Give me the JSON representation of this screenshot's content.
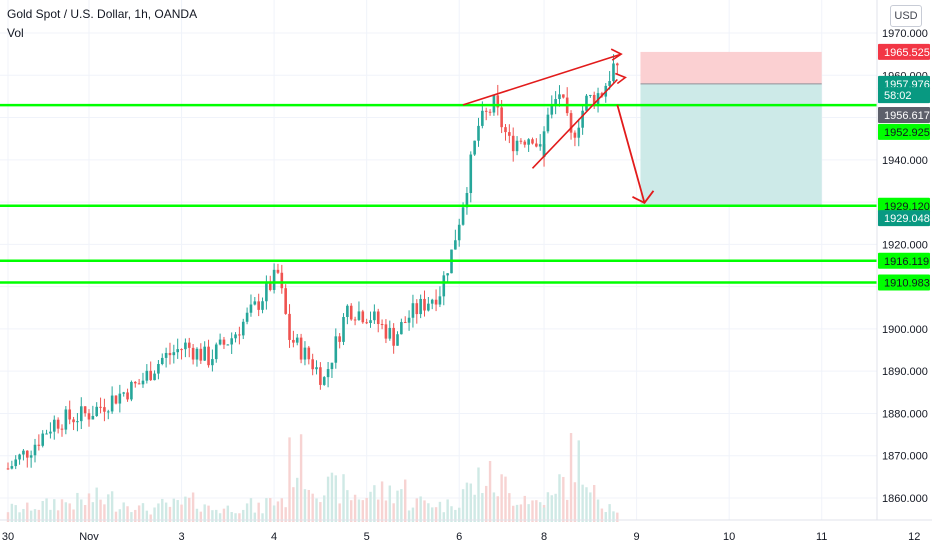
{
  "header": {
    "title": "Gold Spot / U.S. Dollar, 1h, OANDA",
    "volume_label": "Vol",
    "currency_button": "USD"
  },
  "chart_data": {
    "type": "candlestick",
    "symbol": "Gold Spot / U.S. Dollar",
    "interval": "1h",
    "source": "OANDA",
    "ylim": [
      1850,
      1975
    ],
    "y_ticks": [
      "1860.000",
      "1870.000",
      "1880.000",
      "1890.000",
      "1900.000",
      "1910.000",
      "1920.000",
      "1930.000",
      "1940.000",
      "1950.000",
      "1960.000",
      "1970.000"
    ],
    "x_ticks": [
      "30",
      "Nov",
      "3",
      "4",
      "5",
      "6",
      "8",
      "9",
      "10",
      "11",
      "12"
    ],
    "candle_anchors": [
      [
        "2020-10-30 00:00",
        1867
      ],
      [
        "2020-10-30 06:00",
        1872
      ],
      [
        "2020-10-30 12:00",
        1878
      ],
      [
        "2020-11-01 23:00",
        1880
      ],
      [
        "2020-11-02 06:00",
        1884
      ],
      [
        "2020-11-02 12:00",
        1887
      ],
      [
        "2020-11-02 18:00",
        1893
      ],
      [
        "2020-11-03 00:00",
        1896
      ],
      [
        "2020-11-03 06:00",
        1893
      ],
      [
        "2020-11-03 12:00",
        1898
      ],
      [
        "2020-11-03 18:00",
        1905
      ],
      [
        "2020-11-03 21:00",
        1909
      ],
      [
        "2020-11-04 00:00",
        1913
      ],
      [
        "2020-11-04 03:00",
        1898
      ],
      [
        "2020-11-04 08:00",
        1893
      ],
      [
        "2020-11-04 12:00",
        1888
      ],
      [
        "2020-11-04 18:00",
        1905
      ],
      [
        "2020-11-05 00:00",
        1903
      ],
      [
        "2020-11-05 06:00",
        1898
      ],
      [
        "2020-11-05 10:00",
        1903
      ],
      [
        "2020-11-05 18:00",
        1909
      ],
      [
        "2020-11-05 21:00",
        1918
      ],
      [
        "2020-11-06 00:00",
        1930
      ],
      [
        "2020-11-06 04:00",
        1948
      ],
      [
        "2020-11-06 08:00",
        1953
      ],
      [
        "2020-11-06 12:00",
        1944
      ],
      [
        "2020-11-06 18:00",
        1946
      ],
      [
        "2020-11-06 21:00",
        1940
      ],
      [
        "2020-11-08 23:00",
        1948
      ],
      [
        "2020-11-09 03:00",
        1956
      ],
      [
        "2020-11-09 06:00",
        1945
      ],
      [
        "2020-11-09 10:00",
        1954
      ],
      [
        "2020-11-09 14:00",
        1956
      ],
      [
        "2020-11-09 17:00",
        1962
      ],
      [
        "2020-11-09 19:00",
        1958
      ]
    ],
    "volume": {
      "label": "Vol",
      "relative_values": [
        0.2,
        0.25,
        0.3,
        0.35,
        0.3,
        0.2,
        0.25,
        0.3,
        0.2,
        0.25,
        0.2,
        0.3,
        0.35,
        0.9,
        0.6,
        0.5,
        0.4,
        0.45,
        0.5,
        0.3,
        0.25,
        0.35,
        0.5,
        0.65,
        0.55,
        0.4,
        0.3,
        0.25,
        0.35,
        0.6,
        0.95,
        0.4,
        0.3,
        0.25,
        0.2
      ]
    },
    "horizontal_levels": [
      1952.925,
      1929.12,
      1916.119,
      1910.983
    ],
    "rising_wedge": {
      "upper_line": [
        [
          "2020-11-06 00:00",
          1953
        ],
        [
          "2020-11-09 19:00",
          1965
        ]
      ],
      "lower_line": [
        [
          "2020-11-06 18:00",
          1938
        ],
        [
          "2020-11-09 18:00",
          1959
        ]
      ],
      "breakdown_arrow": [
        [
          "2020-11-09 18:00",
          1953
        ],
        [
          "2020-11-10 00:00",
          1929.12
        ]
      ]
    },
    "position": {
      "type": "short",
      "start": "2020-11-10 00:00",
      "end": "2020-11-11 23:00",
      "entry": 1957.976,
      "stop": 1965.525,
      "target": 1929.12
    },
    "price_labels": [
      {
        "value": "1965.525",
        "price": 1965.525,
        "color": "#f23645",
        "text_color": "#ffffff"
      },
      {
        "value": "1957.976",
        "price": 1957.976,
        "color": "#089981",
        "text_color": "#ffffff"
      },
      {
        "value": "58:02",
        "price": 1955.3,
        "color": "#089981",
        "text_color": "#ffffff"
      },
      {
        "value": "1956.617",
        "price": 1950.6,
        "color": "#5d606b",
        "text_color": "#ffffff"
      },
      {
        "value": "1952.925",
        "price": 1946.6,
        "color": "#00ff00",
        "text_color": "#131722"
      },
      {
        "value": "1929.120",
        "price": 1929.12,
        "color": "#00ff00",
        "text_color": "#131722"
      },
      {
        "value": "1929.048",
        "price": 1926.2,
        "color": "#089981",
        "text_color": "#ffffff"
      },
      {
        "value": "1916.119",
        "price": 1916.119,
        "color": "#00ff00",
        "text_color": "#131722"
      },
      {
        "value": "1910.983",
        "price": 1910.983,
        "color": "#00ff00",
        "text_color": "#131722"
      }
    ]
  },
  "colors": {
    "up": "#26a69a",
    "down": "#ef5350",
    "level": "#00ff00",
    "wedge": "#e21b1b",
    "stop_zone": "#fbd0d2",
    "target_zone": "#cdeae8",
    "volume_up": "#cfe9e5",
    "volume_down": "#f7d3d2",
    "grid": "#f0f3fa"
  }
}
